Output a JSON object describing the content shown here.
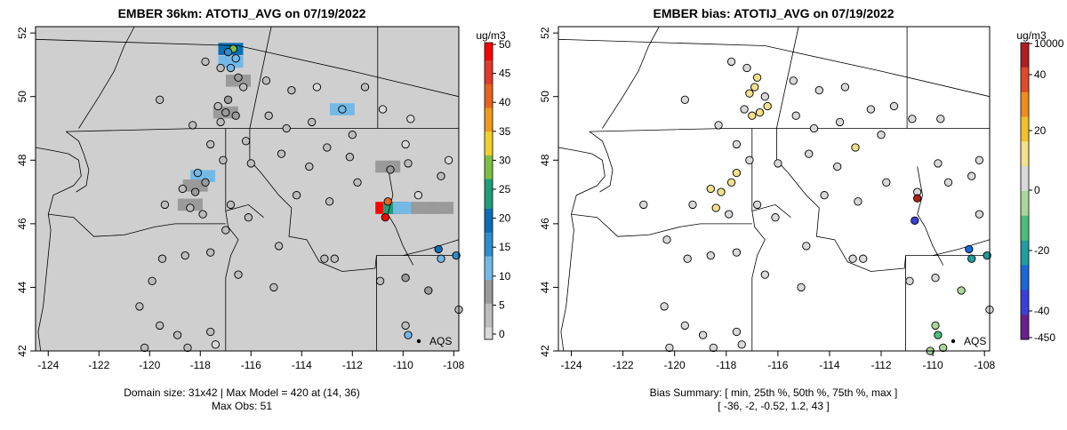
{
  "left_panel": {
    "title": "EMBER 36km: ATOTIJ_AVG on 07/19/2022",
    "colorbar_unit": "ug/m3",
    "colorbar_ticks": [
      "50",
      "45",
      "40",
      "35",
      "30",
      "25",
      "20",
      "15",
      "10",
      "5",
      "0"
    ],
    "legend_label": "AQS",
    "subtitle_line1": "Domain size: 31x42 | Max Model = 420 at (14, 36)",
    "subtitle_line2": "Max Obs: 51"
  },
  "right_panel": {
    "title": "EMBER bias: ATOTIJ_AVG on 07/19/2022",
    "colorbar_unit": "ug/m3",
    "colorbar_ticks": [
      "10000",
      "40",
      "20",
      "0",
      "-20",
      "-40",
      "-450"
    ],
    "legend_label": "AQS",
    "subtitle_line1": "Bias Summary: [ min, 25th %, 50th %, 75th %, max ]",
    "subtitle_line2": "[ -36,   -2,   -0.52,   1.2,   43 ]"
  },
  "colors": {
    "scale_conc": [
      "#d9d9d9",
      "#bdbdbd",
      "#9a9a9a",
      "#74b9e6",
      "#2b8fcf",
      "#0a6fb5",
      "#1f9e7a",
      "#7cc043",
      "#f2d02b",
      "#f09a1d",
      "#e8641e",
      "#e23a2a",
      "#ff0000"
    ],
    "scale_bias": [
      "#6a1f8f",
      "#3a3fd9",
      "#1a68d8",
      "#1f9e9e",
      "#4bbd7a",
      "#a9d69a",
      "#d9d9d9",
      "#f3e08a",
      "#f2c12a",
      "#ee8c1c",
      "#e04a2a",
      "#b01e1e"
    ],
    "background_grey": "#cfcfcf"
  },
  "chart_data": [
    {
      "type": "scatter",
      "subtype": "map with gridded model field and station observations",
      "title": "EMBER 36km: ATOTIJ_AVG on 07/19/2022",
      "xlim": [
        -124.5,
        -107.8
      ],
      "ylim": [
        42,
        52.2
      ],
      "x_ticks": [
        -124,
        -122,
        -120,
        -118,
        -116,
        -114,
        -112,
        -110,
        -108
      ],
      "y_ticks": [
        42,
        44,
        46,
        48,
        50,
        52
      ],
      "colorbar": {
        "min": 0,
        "max": 50,
        "unit": "ug/m3"
      },
      "legend": "AQS",
      "domain_size": "31x42",
      "max_model": 420,
      "max_model_cell": [
        14,
        36
      ],
      "max_obs": 51,
      "points": [
        {
          "lon": -117.8,
          "lat": 51.1,
          "v": 6
        },
        {
          "lon": -117.2,
          "lat": 50.9,
          "v": 3
        },
        {
          "lon": -116.7,
          "lat": 51.5,
          "v": 30
        },
        {
          "lon": -116.9,
          "lat": 51.4,
          "v": 18
        },
        {
          "lon": -116.6,
          "lat": 51.2,
          "v": 12
        },
        {
          "lon": -116.8,
          "lat": 50.9,
          "v": 11
        },
        {
          "lon": -116.5,
          "lat": 50.6,
          "v": 9
        },
        {
          "lon": -116.3,
          "lat": 50.3,
          "v": 5
        },
        {
          "lon": -115.4,
          "lat": 50.5,
          "v": 4
        },
        {
          "lon": -114.4,
          "lat": 50.2,
          "v": 3
        },
        {
          "lon": -113.4,
          "lat": 50.3,
          "v": 2
        },
        {
          "lon": -116.9,
          "lat": 49.9,
          "v": 8
        },
        {
          "lon": -117.3,
          "lat": 49.7,
          "v": 6
        },
        {
          "lon": -117.0,
          "lat": 49.5,
          "v": 10
        },
        {
          "lon": -116.6,
          "lat": 49.4,
          "v": 9
        },
        {
          "lon": -117.2,
          "lat": 49.2,
          "v": 5
        },
        {
          "lon": -119.6,
          "lat": 49.9,
          "v": 4
        },
        {
          "lon": -118.3,
          "lat": 49.1,
          "v": 5
        },
        {
          "lon": -117.6,
          "lat": 48.5,
          "v": 3
        },
        {
          "lon": -116.2,
          "lat": 48.6,
          "v": 4
        },
        {
          "lon": -115.3,
          "lat": 49.4,
          "v": 3
        },
        {
          "lon": -114.6,
          "lat": 49.0,
          "v": 4
        },
        {
          "lon": -113.6,
          "lat": 49.2,
          "v": 5
        },
        {
          "lon": -112.4,
          "lat": 49.6,
          "v": 12
        },
        {
          "lon": -112.0,
          "lat": 48.8,
          "v": 3
        },
        {
          "lon": -111.5,
          "lat": 50.3,
          "v": 3
        },
        {
          "lon": -110.8,
          "lat": 49.6,
          "v": 2
        },
        {
          "lon": -109.7,
          "lat": 49.3,
          "v": 2
        },
        {
          "lon": -109.9,
          "lat": 48.5,
          "v": 2
        },
        {
          "lon": -113.0,
          "lat": 48.4,
          "v": 4
        },
        {
          "lon": -114.8,
          "lat": 48.2,
          "v": 3
        },
        {
          "lon": -116.0,
          "lat": 47.9,
          "v": 4
        },
        {
          "lon": -117.1,
          "lat": 48.0,
          "v": 3
        },
        {
          "lon": -118.1,
          "lat": 47.6,
          "v": 12
        },
        {
          "lon": -117.8,
          "lat": 47.3,
          "v": 10
        },
        {
          "lon": -118.2,
          "lat": 47.0,
          "v": 7
        },
        {
          "lon": -118.7,
          "lat": 47.1,
          "v": 6
        },
        {
          "lon": -119.4,
          "lat": 46.6,
          "v": 5
        },
        {
          "lon": -118.4,
          "lat": 46.5,
          "v": 5
        },
        {
          "lon": -117.9,
          "lat": 46.3,
          "v": 4
        },
        {
          "lon": -116.8,
          "lat": 46.6,
          "v": 3
        },
        {
          "lon": -116.1,
          "lat": 46.2,
          "v": 3
        },
        {
          "lon": -117.0,
          "lat": 45.8,
          "v": 3
        },
        {
          "lon": -114.2,
          "lat": 46.9,
          "v": 4
        },
        {
          "lon": -112.9,
          "lat": 46.7,
          "v": 3
        },
        {
          "lon": -111.8,
          "lat": 47.3,
          "v": 3
        },
        {
          "lon": -113.7,
          "lat": 47.8,
          "v": 5
        },
        {
          "lon": -112.1,
          "lat": 48.1,
          "v": 4
        },
        {
          "lon": -110.5,
          "lat": 47.7,
          "v": 10
        },
        {
          "lon": -109.8,
          "lat": 47.9,
          "v": 3
        },
        {
          "lon": -109.4,
          "lat": 46.9,
          "v": 2
        },
        {
          "lon": -110.6,
          "lat": 46.7,
          "v": 42
        },
        {
          "lon": -110.7,
          "lat": 46.2,
          "v": 51
        },
        {
          "lon": -108.5,
          "lat": 47.5,
          "v": 3
        },
        {
          "lon": -108.2,
          "lat": 48.0,
          "v": 2
        },
        {
          "lon": -108.6,
          "lat": 45.2,
          "v": 22
        },
        {
          "lon": -108.5,
          "lat": 44.9,
          "v": 13
        },
        {
          "lon": -107.9,
          "lat": 45.0,
          "v": 15
        },
        {
          "lon": -114.9,
          "lat": 45.3,
          "v": 3
        },
        {
          "lon": -113.1,
          "lat": 44.9,
          "v": 4
        },
        {
          "lon": -112.7,
          "lat": 44.9,
          "v": 4
        },
        {
          "lon": -110.9,
          "lat": 44.2,
          "v": 3
        },
        {
          "lon": -109.9,
          "lat": 44.3,
          "v": 9
        },
        {
          "lon": -109.0,
          "lat": 43.9,
          "v": 9
        },
        {
          "lon": -117.6,
          "lat": 45.1,
          "v": 4
        },
        {
          "lon": -118.6,
          "lat": 45.0,
          "v": 3
        },
        {
          "lon": -119.5,
          "lat": 44.9,
          "v": 3
        },
        {
          "lon": -116.5,
          "lat": 44.4,
          "v": 3
        },
        {
          "lon": -115.1,
          "lat": 44.0,
          "v": 3
        },
        {
          "lon": -119.9,
          "lat": 44.2,
          "v": 4
        },
        {
          "lon": -120.4,
          "lat": 43.4,
          "v": 3
        },
        {
          "lon": -119.6,
          "lat": 42.8,
          "v": 3
        },
        {
          "lon": -118.9,
          "lat": 42.5,
          "v": 3
        },
        {
          "lon": -118.5,
          "lat": 42.1,
          "v": 3
        },
        {
          "lon": -120.2,
          "lat": 42.1,
          "v": 4
        },
        {
          "lon": -117.6,
          "lat": 42.6,
          "v": 3
        },
        {
          "lon": -117.4,
          "lat": 42.2,
          "v": 2
        },
        {
          "lon": -109.9,
          "lat": 42.8,
          "v": 4
        },
        {
          "lon": -109.8,
          "lat": 42.5,
          "v": 14
        },
        {
          "lon": -107.8,
          "lat": 43.3,
          "v": 4
        }
      ]
    },
    {
      "type": "scatter",
      "subtype": "map of station bias",
      "title": "EMBER bias: ATOTIJ_AVG on 07/19/2022",
      "xlim": [
        -124.5,
        -107.8
      ],
      "ylim": [
        42,
        52.2
      ],
      "x_ticks": [
        -124,
        -122,
        -120,
        -118,
        -116,
        -114,
        -112,
        -110,
        -108
      ],
      "y_ticks": [
        42,
        44,
        46,
        48,
        50,
        52
      ],
      "colorbar": {
        "ticks": [
          10000,
          40,
          20,
          0,
          -20,
          -40,
          -450
        ],
        "unit": "ug/m3"
      },
      "legend": "AQS",
      "bias_summary": {
        "min": -36,
        "p25": -2,
        "p50": -0.52,
        "p75": 1.2,
        "max": 43
      },
      "points": [
        {
          "lon": -117.8,
          "lat": 51.1,
          "v": 1
        },
        {
          "lon": -117.2,
          "lat": 50.9,
          "v": 0
        },
        {
          "lon": -116.8,
          "lat": 50.6,
          "v": 6
        },
        {
          "lon": -116.9,
          "lat": 50.3,
          "v": 8
        },
        {
          "lon": -117.1,
          "lat": 50.1,
          "v": 5
        },
        {
          "lon": -116.5,
          "lat": 50.0,
          "v": 3
        },
        {
          "lon": -116.4,
          "lat": 49.7,
          "v": 10
        },
        {
          "lon": -116.7,
          "lat": 49.5,
          "v": 9
        },
        {
          "lon": -117.0,
          "lat": 49.4,
          "v": 8
        },
        {
          "lon": -117.3,
          "lat": 49.6,
          "v": 4
        },
        {
          "lon": -119.6,
          "lat": 49.9,
          "v": 1
        },
        {
          "lon": -115.4,
          "lat": 50.5,
          "v": -2
        },
        {
          "lon": -114.4,
          "lat": 50.2,
          "v": -2
        },
        {
          "lon": -113.4,
          "lat": 50.3,
          "v": -1
        },
        {
          "lon": -115.3,
          "lat": 49.4,
          "v": -1
        },
        {
          "lon": -114.6,
          "lat": 49.0,
          "v": -2
        },
        {
          "lon": -113.6,
          "lat": 49.2,
          "v": -1
        },
        {
          "lon": -112.4,
          "lat": 49.6,
          "v": -3
        },
        {
          "lon": -112.0,
          "lat": 48.8,
          "v": 2
        },
        {
          "lon": -111.5,
          "lat": 49.7,
          "v": -2
        },
        {
          "lon": -110.8,
          "lat": 49.3,
          "v": -3
        },
        {
          "lon": -109.7,
          "lat": 49.3,
          "v": -2
        },
        {
          "lon": -113.0,
          "lat": 48.4,
          "v": 5
        },
        {
          "lon": -114.8,
          "lat": 48.2,
          "v": -1
        },
        {
          "lon": -116.0,
          "lat": 47.9,
          "v": 0
        },
        {
          "lon": -117.1,
          "lat": 48.0,
          "v": 1
        },
        {
          "lon": -117.6,
          "lat": 48.5,
          "v": 0
        },
        {
          "lon": -118.3,
          "lat": 49.1,
          "v": 0
        },
        {
          "lon": -117.6,
          "lat": 47.6,
          "v": 9
        },
        {
          "lon": -117.8,
          "lat": 47.3,
          "v": 7
        },
        {
          "lon": -118.2,
          "lat": 47.0,
          "v": 7
        },
        {
          "lon": -118.6,
          "lat": 47.1,
          "v": 6
        },
        {
          "lon": -119.3,
          "lat": 46.6,
          "v": 4
        },
        {
          "lon": -118.4,
          "lat": 46.5,
          "v": 6
        },
        {
          "lon": -117.9,
          "lat": 46.3,
          "v": 0
        },
        {
          "lon": -116.8,
          "lat": 46.6,
          "v": 0
        },
        {
          "lon": -116.1,
          "lat": 46.2,
          "v": 0
        },
        {
          "lon": -114.2,
          "lat": 46.9,
          "v": -1
        },
        {
          "lon": -112.9,
          "lat": 46.7,
          "v": -1
        },
        {
          "lon": -111.8,
          "lat": 47.3,
          "v": -2
        },
        {
          "lon": -113.7,
          "lat": 47.8,
          "v": 0
        },
        {
          "lon": -110.6,
          "lat": 47.0,
          "v": 4
        },
        {
          "lon": -110.6,
          "lat": 46.8,
          "v": 43
        },
        {
          "lon": -110.7,
          "lat": 46.1,
          "v": -36
        },
        {
          "lon": -109.8,
          "lat": 47.9,
          "v": -2
        },
        {
          "lon": -109.4,
          "lat": 47.3,
          "v": -1
        },
        {
          "lon": -108.5,
          "lat": 47.5,
          "v": -3
        },
        {
          "lon": -108.2,
          "lat": 48.0,
          "v": 0
        },
        {
          "lon": -108.2,
          "lat": 46.3,
          "v": 3
        },
        {
          "lon": -108.6,
          "lat": 45.2,
          "v": -25
        },
        {
          "lon": -108.5,
          "lat": 44.9,
          "v": -18
        },
        {
          "lon": -107.9,
          "lat": 45.0,
          "v": -20
        },
        {
          "lon": -114.9,
          "lat": 45.3,
          "v": 0
        },
        {
          "lon": -113.1,
          "lat": 44.9,
          "v": 4
        },
        {
          "lon": -112.7,
          "lat": 44.9,
          "v": 3
        },
        {
          "lon": -110.9,
          "lat": 44.2,
          "v": -2
        },
        {
          "lon": -109.9,
          "lat": 44.3,
          "v": -3
        },
        {
          "lon": -108.9,
          "lat": 43.9,
          "v": -4
        },
        {
          "lon": -117.6,
          "lat": 45.1,
          "v": 0
        },
        {
          "lon": -118.6,
          "lat": 45.0,
          "v": 0
        },
        {
          "lon": -119.5,
          "lat": 44.9,
          "v": -1
        },
        {
          "lon": -116.5,
          "lat": 44.4,
          "v": 0
        },
        {
          "lon": -115.1,
          "lat": 44.0,
          "v": -1
        },
        {
          "lon": -120.4,
          "lat": 43.4,
          "v": -1
        },
        {
          "lon": -119.6,
          "lat": 42.8,
          "v": -1
        },
        {
          "lon": -118.9,
          "lat": 42.5,
          "v": -1
        },
        {
          "lon": -118.5,
          "lat": 42.1,
          "v": -1
        },
        {
          "lon": -120.2,
          "lat": 42.1,
          "v": -3
        },
        {
          "lon": -117.6,
          "lat": 42.6,
          "v": -1
        },
        {
          "lon": -117.4,
          "lat": 42.2,
          "v": -1
        },
        {
          "lon": -109.9,
          "lat": 42.8,
          "v": -8
        },
        {
          "lon": -109.8,
          "lat": 42.5,
          "v": -14
        },
        {
          "lon": -110.1,
          "lat": 42.0,
          "v": -6
        },
        {
          "lon": -109.6,
          "lat": 42.1,
          "v": -4
        },
        {
          "lon": -107.8,
          "lat": 43.3,
          "v": -2
        },
        {
          "lon": -121.2,
          "lat": 46.6,
          "v": 1
        },
        {
          "lon": -120.3,
          "lat": 45.5,
          "v": -2
        }
      ]
    }
  ]
}
